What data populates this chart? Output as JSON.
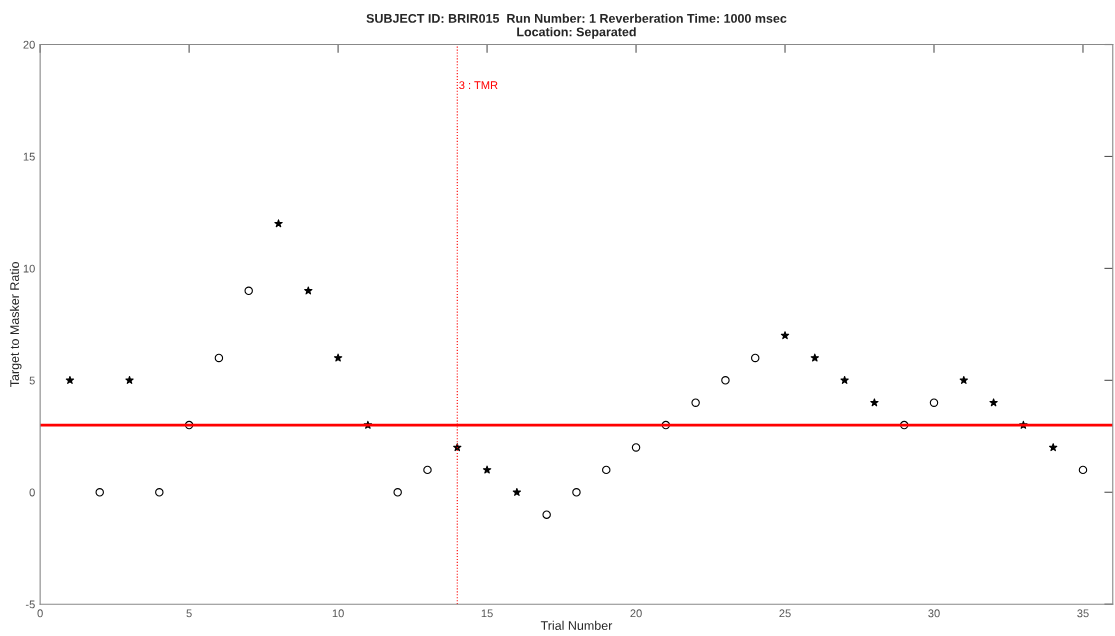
{
  "chart_data": {
    "type": "scatter",
    "title": "SUBJECT ID: BRIR015  Run Number: 1 Reverberation Time: 1000 msec\nLocation: Separated",
    "xlabel": "Trial Number",
    "ylabel": "Target to Masker Ratio",
    "x": [
      1,
      2,
      3,
      4,
      5,
      6,
      7,
      8,
      9,
      10,
      11,
      12,
      13,
      14,
      15,
      16,
      17,
      18,
      19,
      20,
      21,
      22,
      23,
      24,
      25,
      26,
      27,
      28,
      29,
      30,
      31,
      32,
      33,
      34,
      35
    ],
    "series": [
      {
        "color": "#000000",
        "marker": "star",
        "values": [
          5,
          null,
          5,
          null,
          null,
          null,
          null,
          12,
          9,
          6,
          3,
          null,
          null,
          2,
          1,
          0,
          null,
          null,
          null,
          null,
          null,
          null,
          null,
          null,
          7,
          6,
          5,
          4,
          null,
          null,
          5,
          4,
          3,
          2,
          null
        ]
      },
      {
        "color": "#000000",
        "marker": "circle",
        "values": [
          null,
          0,
          null,
          0,
          3,
          6,
          9,
          null,
          null,
          null,
          null,
          0,
          1,
          null,
          null,
          null,
          -1,
          0,
          1,
          2,
          3,
          4,
          5,
          6,
          null,
          null,
          null,
          null,
          3,
          4,
          null,
          null,
          null,
          null,
          1
        ]
      }
    ],
    "xlim": [
      0,
      36
    ],
    "xticks": [
      0,
      5,
      10,
      15,
      20,
      25,
      30,
      35
    ],
    "ylim": [
      -5,
      20
    ],
    "yticks": [
      -5,
      0,
      5,
      10,
      15,
      20
    ],
    "ref_lines": [
      {
        "axis": "y",
        "value": 3,
        "color": "#ff0000",
        "line_style": "solid"
      },
      {
        "axis": "x",
        "value": 14,
        "label": "3 : TMR",
        "color": "#ff0000",
        "line_style": "dotted"
      }
    ],
    "grid": false,
    "legend": false
  }
}
